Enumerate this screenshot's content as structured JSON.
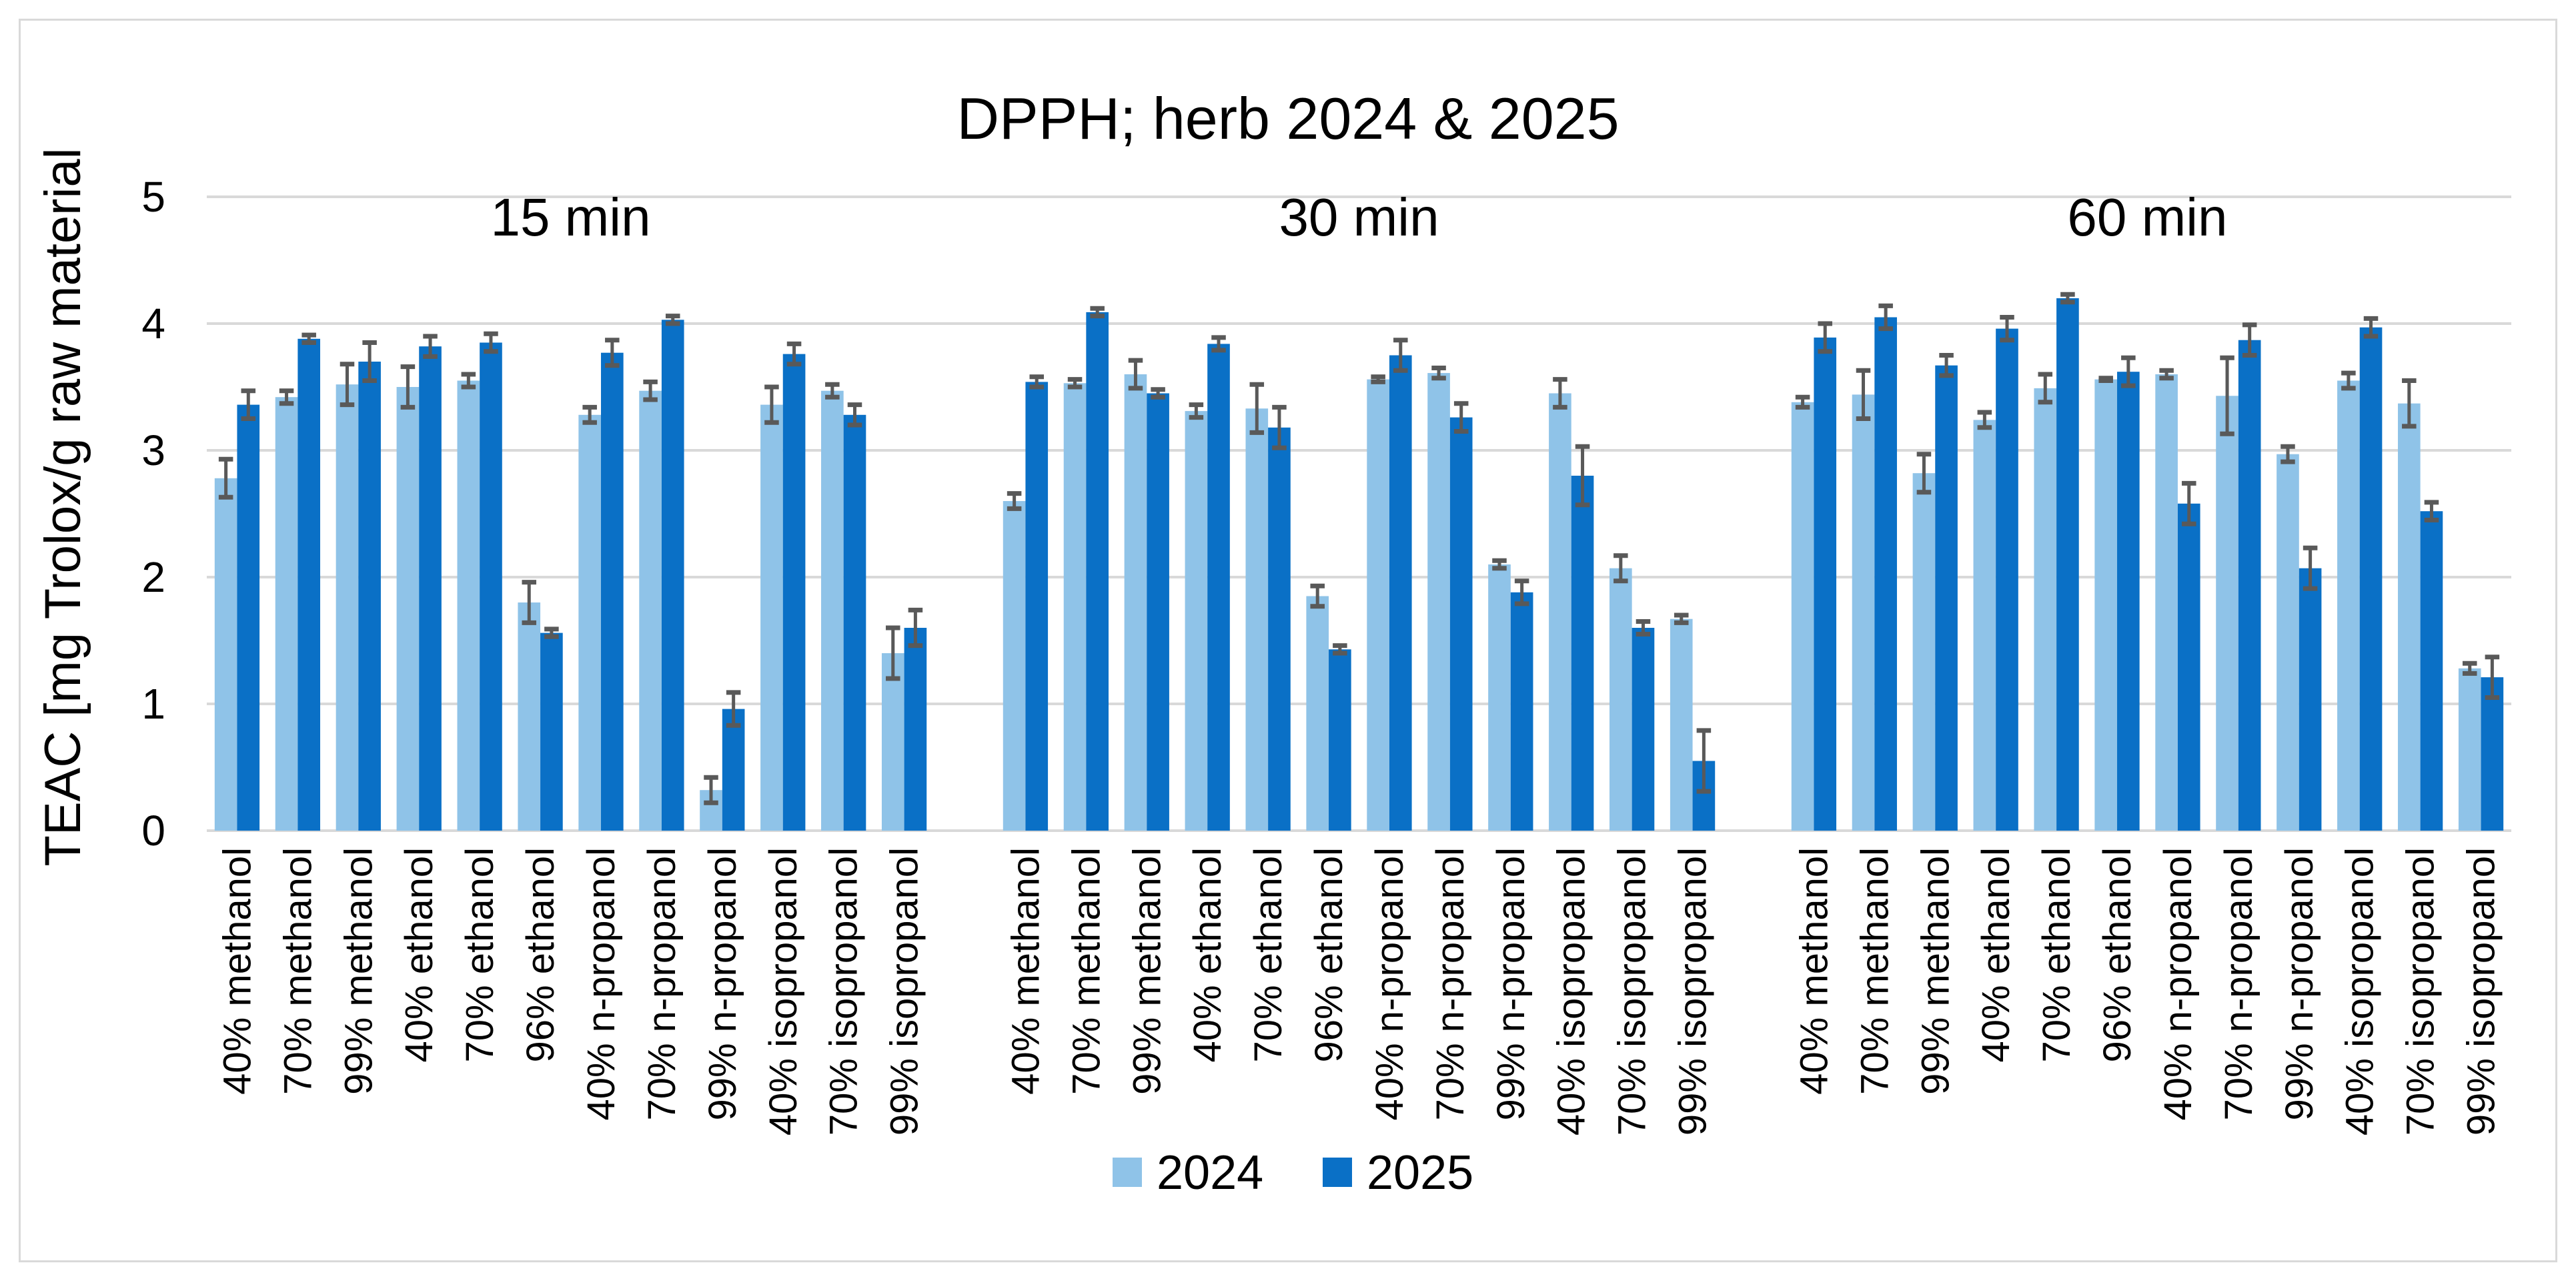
{
  "chart_data": {
    "type": "bar",
    "title": "DPPH; herb 2024 & 2025",
    "ylabel": "TEAC [mg Trolox/g raw material",
    "xlabel": "",
    "ylim": [
      0,
      5
    ],
    "yticks": [
      0,
      1,
      2,
      3,
      4,
      5
    ],
    "grid": true,
    "legend_position": "bottom",
    "colors": {
      "2024": "#8fc3e8",
      "2025": "#0a70c6",
      "error_bar": "#595959",
      "grid": "#d9d9d9"
    },
    "groups": [
      {
        "label": "15 min",
        "categories": [
          "40% methanol",
          "70% methanol",
          "99% methanol",
          "40% ethanol",
          "70% ethanol",
          "96% ethanol",
          "40% n-propanol",
          "70% n-propanol",
          "99% n-propanol",
          "40% isopropanol",
          "70% isopropanol",
          "99% isopropanol"
        ],
        "series": [
          {
            "name": "2024",
            "values": [
              2.78,
              3.42,
              3.52,
              3.5,
              3.55,
              1.8,
              3.28,
              3.47,
              0.32,
              3.36,
              3.47,
              1.4
            ],
            "errors": [
              0.15,
              0.05,
              0.16,
              0.16,
              0.05,
              0.16,
              0.06,
              0.07,
              0.1,
              0.14,
              0.05,
              0.2
            ]
          },
          {
            "name": "2025",
            "values": [
              3.36,
              3.88,
              3.7,
              3.82,
              3.85,
              1.56,
              3.77,
              4.03,
              0.96,
              3.76,
              3.28,
              1.6
            ],
            "errors": [
              0.11,
              0.03,
              0.15,
              0.08,
              0.07,
              0.03,
              0.1,
              0.03,
              0.13,
              0.08,
              0.08,
              0.14
            ]
          }
        ]
      },
      {
        "label": "30 min",
        "categories": [
          "40% methanol",
          "70% methanol",
          "99% methanol",
          "40% ethanol",
          "70% ethanol",
          "96% ethanol",
          "40% n-propanol",
          "70% n-propanol",
          "99% n-propanol",
          "40% isopropanol",
          "70% isopropanol",
          "99% isopropanol"
        ],
        "series": [
          {
            "name": "2024",
            "values": [
              2.6,
              3.53,
              3.6,
              3.31,
              3.33,
              1.85,
              3.56,
              3.61,
              2.1,
              3.45,
              2.07,
              1.67
            ],
            "errors": [
              0.06,
              0.03,
              0.11,
              0.05,
              0.19,
              0.08,
              0.02,
              0.04,
              0.03,
              0.11,
              0.1,
              0.03
            ]
          },
          {
            "name": "2025",
            "values": [
              3.54,
              4.09,
              3.45,
              3.84,
              3.18,
              1.43,
              3.75,
              3.26,
              1.88,
              2.8,
              1.6,
              0.55
            ],
            "errors": [
              0.04,
              0.03,
              0.03,
              0.05,
              0.16,
              0.03,
              0.12,
              0.11,
              0.09,
              0.23,
              0.05,
              0.24
            ]
          }
        ]
      },
      {
        "label": "60 min",
        "categories": [
          "40% methanol",
          "70% methanol",
          "99% methanol",
          "40% ethanol",
          "70% ethanol",
          "96% ethanol",
          "40% n-propanol",
          "70% n-propanol",
          "99% n-propanol",
          "40% isopropanol",
          "70% isopropanol",
          "99% isopropanol"
        ],
        "series": [
          {
            "name": "2024",
            "values": [
              3.38,
              3.44,
              2.82,
              3.24,
              3.49,
              3.56,
              3.6,
              3.43,
              2.97,
              3.55,
              3.37,
              1.28
            ],
            "errors": [
              0.04,
              0.19,
              0.15,
              0.06,
              0.11,
              0.01,
              0.03,
              0.3,
              0.06,
              0.06,
              0.18,
              0.04
            ]
          },
          {
            "name": "2025",
            "values": [
              3.89,
              4.05,
              3.67,
              3.96,
              4.2,
              3.62,
              2.58,
              3.87,
              2.07,
              3.97,
              2.52,
              1.21
            ],
            "errors": [
              0.11,
              0.09,
              0.08,
              0.09,
              0.03,
              0.11,
              0.16,
              0.12,
              0.16,
              0.07,
              0.07,
              0.16
            ]
          }
        ]
      }
    ],
    "legend": [
      {
        "name": "2024"
      },
      {
        "name": "2025"
      }
    ]
  }
}
